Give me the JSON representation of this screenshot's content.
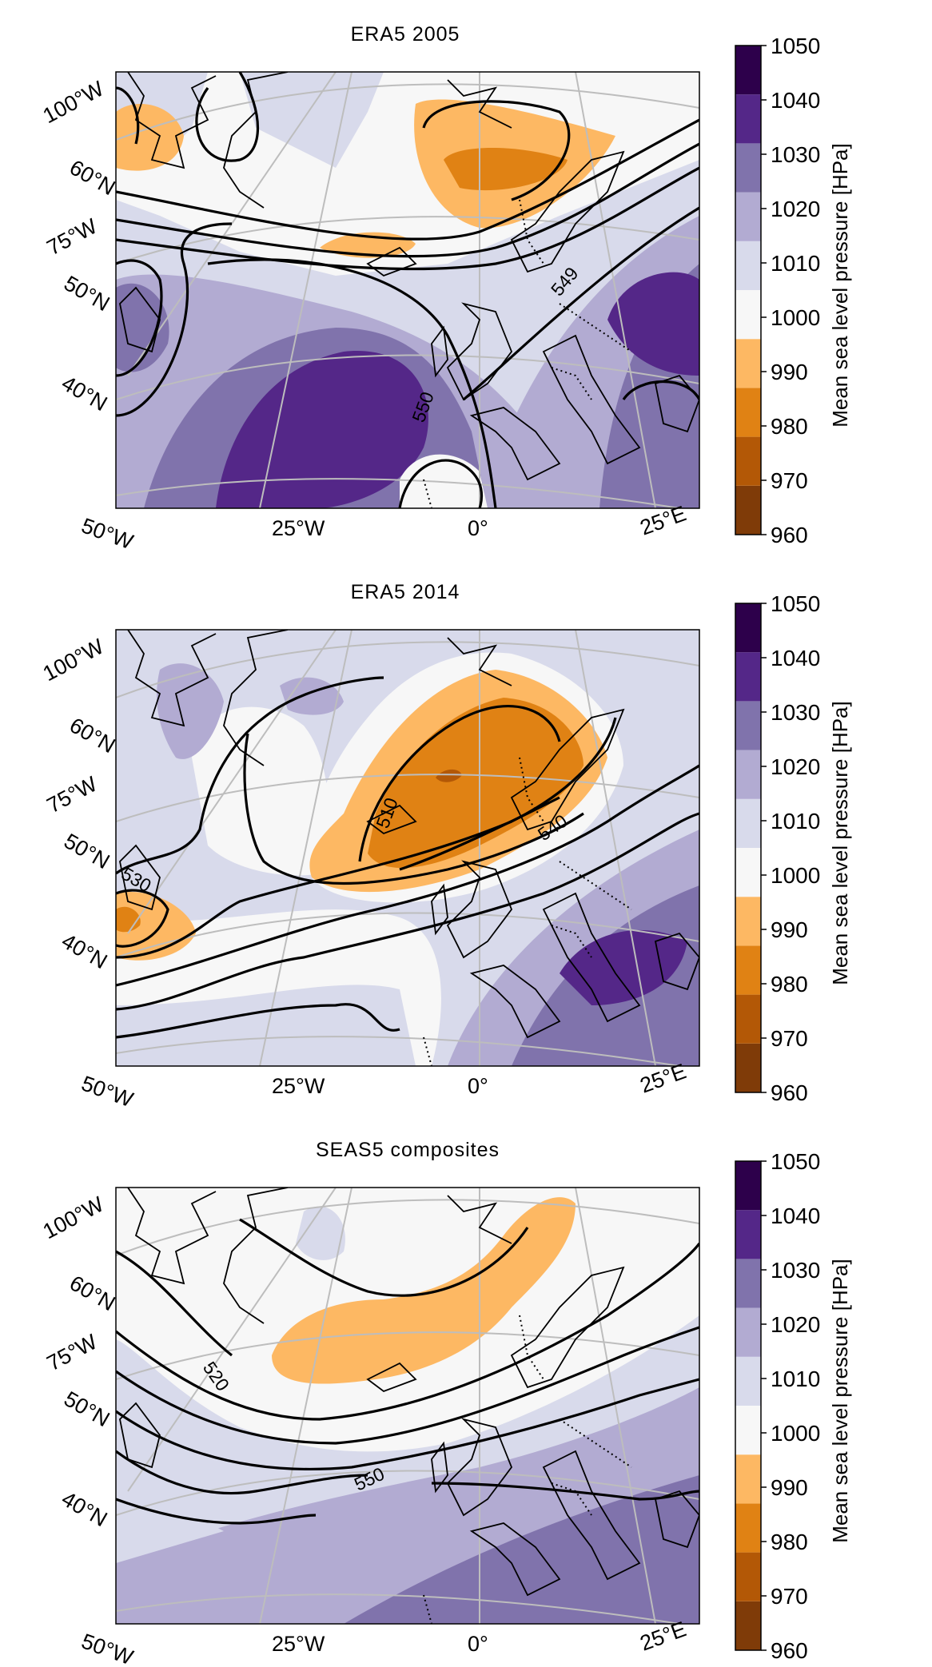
{
  "chart_data": [
    {
      "type": "contour map",
      "title": "ERA5 2005",
      "lon_labels": [
        "50°W",
        "25°W",
        "0°",
        "25°E"
      ],
      "lat_labels": [
        "100°W",
        "60°N",
        "75°W",
        "50°N",
        "40°N"
      ],
      "contour_labels": [
        "549",
        "550"
      ],
      "colorbar": {
        "label": "Mean sea level pressure [HPa]",
        "ticks": [
          960,
          970,
          980,
          990,
          1000,
          1010,
          1020,
          1030,
          1040,
          1050
        ],
        "colors": [
          "#7f3b08",
          "#b35806",
          "#e08214",
          "#fdb863",
          "#f7f7f7",
          "#d8daeb",
          "#b2abd2",
          "#8073ac",
          "#542788",
          "#2d004b"
        ]
      }
    },
    {
      "type": "contour map",
      "title": "ERA5 2014",
      "lon_labels": [
        "50°W",
        "25°W",
        "0°",
        "25°E"
      ],
      "lat_labels": [
        "100°W",
        "60°N",
        "75°W",
        "50°N",
        "40°N"
      ],
      "contour_labels": [
        "510",
        "540",
        "530"
      ],
      "colorbar": {
        "label": "Mean sea level pressure [HPa]",
        "ticks": [
          960,
          970,
          980,
          990,
          1000,
          1010,
          1020,
          1030,
          1040,
          1050
        ],
        "colors": [
          "#7f3b08",
          "#b35806",
          "#e08214",
          "#fdb863",
          "#f7f7f7",
          "#d8daeb",
          "#b2abd2",
          "#8073ac",
          "#542788",
          "#2d004b"
        ]
      }
    },
    {
      "type": "contour map",
      "title": "SEAS5 composites",
      "lon_labels": [
        "50°W",
        "25°W",
        "0°",
        "25°E"
      ],
      "lat_labels": [
        "100°W",
        "60°N",
        "75°W",
        "50°N",
        "40°N"
      ],
      "contour_labels": [
        "520",
        "550"
      ],
      "colorbar": {
        "label": "Mean sea level pressure [HPa]",
        "ticks": [
          960,
          970,
          980,
          990,
          1000,
          1010,
          1020,
          1030,
          1040,
          1050
        ],
        "colors": [
          "#7f3b08",
          "#b35806",
          "#e08214",
          "#fdb863",
          "#f7f7f7",
          "#d8daeb",
          "#b2abd2",
          "#8073ac",
          "#542788",
          "#2d004b"
        ]
      }
    }
  ]
}
